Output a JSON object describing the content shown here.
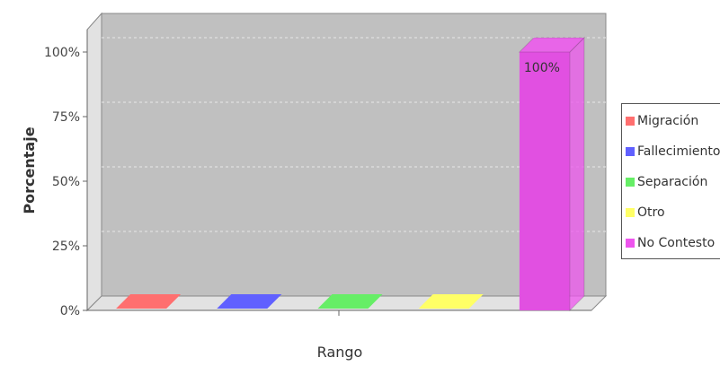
{
  "chart_data": {
    "type": "bar",
    "x_axis_label": "Rango",
    "y_axis_label": "Porcentaje",
    "y_ticks": [
      "0%",
      "25%",
      "50%",
      "75%",
      "100%"
    ],
    "ylim": [
      0,
      100
    ],
    "grid": true,
    "legend_position": "right",
    "series": [
      {
        "name": "Migración",
        "value": 0,
        "color": "#ff6f6f"
      },
      {
        "name": "Fallecimiento",
        "value": 0,
        "color": "#6060ff"
      },
      {
        "name": "Separación",
        "value": 0,
        "color": "#66ee66"
      },
      {
        "name": "Otro",
        "value": 0,
        "color": "#ffff66"
      },
      {
        "name": "No Contesto",
        "value": 100,
        "color": "#ee55ee",
        "label": "100%"
      }
    ]
  }
}
